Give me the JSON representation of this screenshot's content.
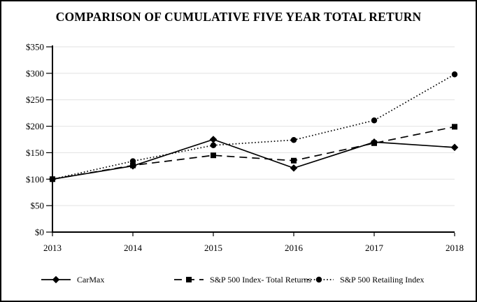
{
  "colors": {
    "line": "#000000",
    "grid": "#e2e2e2",
    "background": "#ffffff",
    "border": "#000000"
  },
  "chart_data": {
    "type": "line",
    "title": "COMPARISON OF CUMULATIVE FIVE YEAR TOTAL RETURN",
    "categories": [
      "2013",
      "2014",
      "2015",
      "2016",
      "2017",
      "2018"
    ],
    "series": [
      {
        "name": "CarMax",
        "marker": "diamond",
        "line_style": "solid",
        "values": [
          100,
          125,
          175,
          121,
          170,
          160
        ]
      },
      {
        "name": "S&P 500 Index- Total Returns",
        "marker": "square",
        "line_style": "dashed",
        "values": [
          100,
          126,
          145,
          135,
          168,
          199
        ]
      },
      {
        "name": "S&P 500 Retailing Index",
        "marker": "circle",
        "line_style": "dotted",
        "values": [
          100,
          134,
          164,
          174,
          211,
          298
        ]
      }
    ],
    "ylim": [
      0,
      350
    ],
    "ytick_step": 50,
    "ytick_labels": [
      "$0",
      "$50",
      "$100",
      "$150",
      "$200",
      "$250",
      "$300",
      "$350"
    ],
    "xlabel": "",
    "ylabel": "",
    "grid": "horizontal",
    "legend_position": "bottom"
  }
}
